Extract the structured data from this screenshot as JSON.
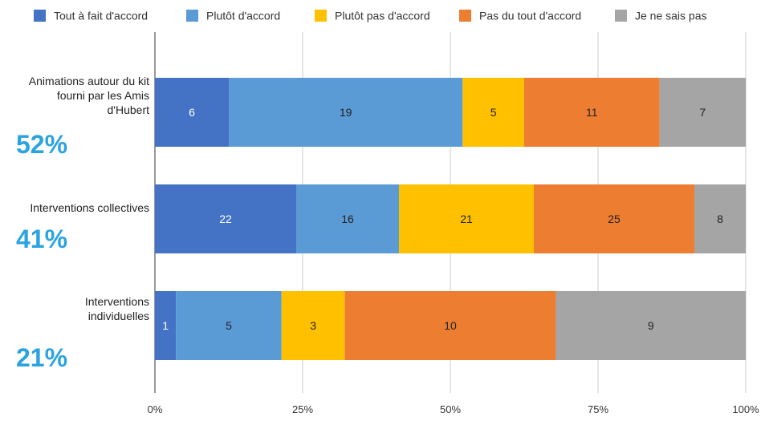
{
  "chart_data": {
    "type": "bar",
    "orientation": "horizontal",
    "stacked": "percent",
    "categories": [
      {
        "lines": [
          "Animations autour du kit",
          "fourni par les Amis",
          "d'Hubert"
        ],
        "highlight": "52%"
      },
      {
        "lines": [
          "Interventions collectives"
        ],
        "highlight": "41%"
      },
      {
        "lines": [
          "Interventions",
          "individuelles"
        ],
        "highlight": "21%"
      }
    ],
    "series": [
      {
        "name": "Tout à fait d'accord",
        "color": "#4472c4",
        "label_color": "#ffffff",
        "values": [
          6,
          22,
          1
        ]
      },
      {
        "name": "Plutôt d'accord",
        "color": "#5b9bd5",
        "label_color": "#222222",
        "values": [
          19,
          16,
          5
        ]
      },
      {
        "name": "Plutôt pas d'accord",
        "color": "#ffc000",
        "label_color": "#222222",
        "values": [
          5,
          21,
          3
        ]
      },
      {
        "name": "Pas du tout d'accord",
        "color": "#ed7d31",
        "label_color": "#222222",
        "values": [
          11,
          25,
          10
        ]
      },
      {
        "name": "Je ne sais pas",
        "color": "#a5a5a5",
        "label_color": "#222222",
        "values": [
          7,
          8,
          9
        ]
      }
    ],
    "xaxis": {
      "ticks": [
        "0%",
        "25%",
        "50%",
        "75%",
        "100%"
      ],
      "range": [
        0,
        100
      ]
    },
    "grid": true,
    "legend_position": "top"
  }
}
